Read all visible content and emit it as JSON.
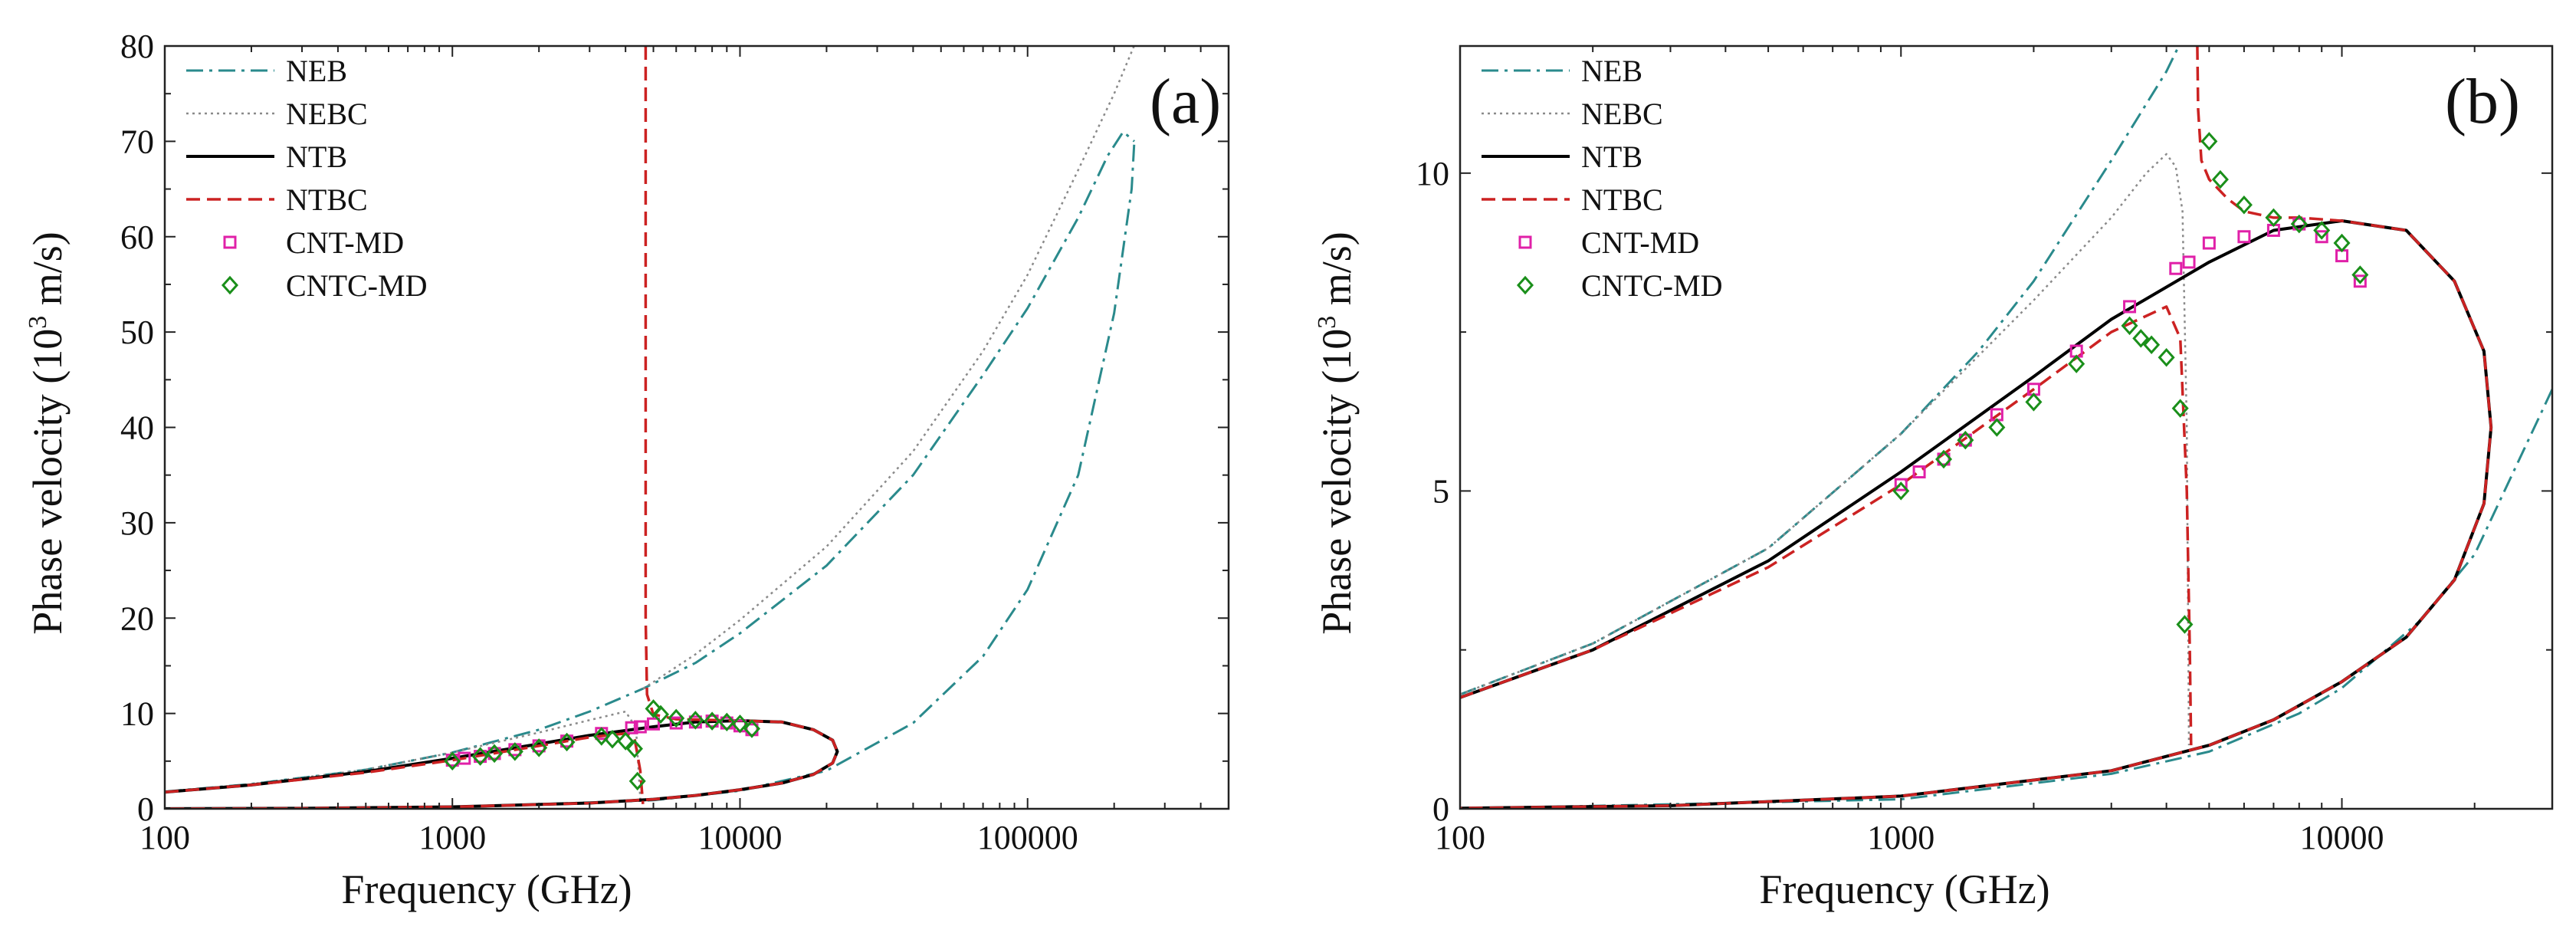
{
  "colors": {
    "NEB": "#2a8a8c",
    "NEBC": "#8a8a8a",
    "NTB": "#000000",
    "NTBC": "#cc2222",
    "CNT-MD": "#e020a8",
    "CNTC-MD": "#1a8f1a"
  },
  "chart_data": [
    {
      "type": "line",
      "panel_label": "(a)",
      "xlabel": "Frequency (GHz)",
      "ylabel": "Phase velocity (10",
      "ylabel_sup": "3",
      "ylabel_unit": " m/s)",
      "xscale": "log",
      "xlim": [
        100,
        500000
      ],
      "ylim": [
        0,
        80
      ],
      "x_ticks": [
        100,
        1000,
        10000,
        100000
      ],
      "x_tick_labels": [
        "100",
        "1000",
        "10000",
        "100000"
      ],
      "y_ticks": [
        0,
        10,
        20,
        30,
        40,
        50,
        60,
        70,
        80
      ],
      "y_tick_labels": [
        "0",
        "10",
        "20",
        "30",
        "40",
        "50",
        "60",
        "70",
        "80"
      ],
      "legend_position": "top-left",
      "series": [
        {
          "name": "NEB",
          "style": "dashdot",
          "branches": [
            {
              "x": [
                100,
                200,
                500,
                1000,
                2000,
                3000,
                4600,
                7000,
                10000,
                20000,
                40000,
                70000,
                100000,
                150000,
                190000,
                215000,
                235000
              ],
              "y": [
                1.8,
                2.6,
                4.1,
                5.9,
                8.3,
                10.2,
                12.6,
                15.3,
                18.4,
                25.5,
                35.0,
                45.5,
                52.5,
                62.0,
                68.5,
                71.0,
                70.0
              ]
            },
            {
              "x": [
                100,
                1000,
                5000,
                10000,
                20000,
                40000,
                70000,
                100000,
                150000,
                200000,
                230000,
                235000
              ],
              "y": [
                0.0,
                0.15,
                0.9,
                1.9,
                4.0,
                9.0,
                16.0,
                23.0,
                35.0,
                52.0,
                65.0,
                70.0
              ]
            }
          ]
        },
        {
          "name": "NEBC",
          "style": "dotted",
          "branches": [
            {
              "x": [
                100,
                200,
                500,
                1000,
                2000,
                3000,
                4000,
                4350,
                4500
              ],
              "y": [
                1.8,
                2.6,
                4.1,
                5.9,
                8.0,
                9.3,
                10.2,
                8.5,
                1.0
              ]
            },
            {
              "x": [
                4600,
                5000,
                7000,
                10000,
                20000,
                40000,
                70000,
                100000,
                150000,
                200000,
                250000
              ],
              "y": [
                12.6,
                13.3,
                16.2,
                19.8,
                27.5,
                37.5,
                48.0,
                56.0,
                67.0,
                75.0,
                82.0
              ]
            }
          ]
        },
        {
          "name": "NTB",
          "style": "solid",
          "branches": [
            {
              "x": [
                100,
                200,
                500,
                1000,
                2000,
                3000,
                5000,
                7000,
                10000,
                14000,
                18000,
                21000,
                21800,
                21000,
                18000,
                14000,
                10000,
                7000,
                5000,
                3000,
                1000,
                300,
                100
              ],
              "y": [
                1.75,
                2.5,
                3.9,
                5.3,
                6.8,
                7.7,
                8.6,
                9.1,
                9.25,
                9.1,
                8.3,
                7.2,
                6.0,
                4.8,
                3.6,
                2.7,
                2.0,
                1.4,
                1.0,
                0.6,
                0.2,
                0.05,
                0.01
              ]
            }
          ]
        },
        {
          "name": "NTBC",
          "style": "dashed",
          "branches": [
            {
              "x": [
                100,
                200,
                500,
                1000,
                2000,
                3000,
                4000,
                4300,
                4500,
                4600
              ],
              "y": [
                1.75,
                2.5,
                3.8,
                5.1,
                6.6,
                7.5,
                7.9,
                7.4,
                4.0,
                0.5
              ]
            },
            {
              "x": [
                4700,
                4700,
                4750,
                5000,
                6000,
                8000,
                10000,
                14000,
                18000,
                21000,
                21800,
                21000,
                18000,
                14000,
                10000,
                7000,
                5000,
                3000,
                1000,
                300,
                100
              ],
              "y": [
                80,
                20,
                12.0,
                9.9,
                9.4,
                9.3,
                9.25,
                9.1,
                8.3,
                7.2,
                6.0,
                4.8,
                3.6,
                2.7,
                2.0,
                1.4,
                1.0,
                0.6,
                0.2,
                0.05,
                0.01
              ]
            }
          ]
        }
      ],
      "markers": [
        {
          "name": "CNT-MD",
          "symbol": "square",
          "points": [
            [
              1000,
              5.1
            ],
            [
              1100,
              5.3
            ],
            [
              1250,
              5.5
            ],
            [
              1400,
              5.8
            ],
            [
              1650,
              6.2
            ],
            [
              2000,
              6.6
            ],
            [
              2500,
              7.1
            ],
            [
              3300,
              7.9
            ],
            [
              4200,
              8.5
            ],
            [
              4500,
              8.6
            ],
            [
              5000,
              8.9
            ],
            [
              6000,
              9.0
            ],
            [
              7000,
              9.1
            ],
            [
              8000,
              9.2
            ],
            [
              9000,
              9.0
            ],
            [
              10000,
              8.7
            ],
            [
              11000,
              8.3
            ]
          ]
        },
        {
          "name": "CNTC-MD",
          "symbol": "diamond",
          "points": [
            [
              1000,
              5.0
            ],
            [
              1250,
              5.5
            ],
            [
              1400,
              5.8
            ],
            [
              1650,
              6.0
            ],
            [
              2000,
              6.4
            ],
            [
              2500,
              7.0
            ],
            [
              3300,
              7.6
            ],
            [
              3600,
              7.3
            ],
            [
              4000,
              7.1
            ],
            [
              4300,
              6.3
            ],
            [
              4400,
              2.9
            ],
            [
              5000,
              10.5
            ],
            [
              5300,
              9.9
            ],
            [
              6000,
              9.5
            ],
            [
              7000,
              9.3
            ],
            [
              8000,
              9.2
            ],
            [
              9000,
              9.1
            ],
            [
              10000,
              8.9
            ],
            [
              11000,
              8.4
            ]
          ]
        }
      ]
    },
    {
      "type": "line",
      "panel_label": "(b)",
      "xlabel": "Frequency (GHz)",
      "ylabel": "Phase velocity (10",
      "ylabel_sup": "3",
      "ylabel_unit": " m/s)",
      "xscale": "log",
      "xlim": [
        100,
        30000
      ],
      "ylim": [
        0,
        12
      ],
      "x_ticks": [
        100,
        1000,
        10000
      ],
      "x_tick_labels": [
        "100",
        "1000",
        "10000"
      ],
      "y_ticks": [
        0,
        5,
        10
      ],
      "y_tick_labels": [
        "0",
        "5",
        "10"
      ],
      "legend_position": "top-left",
      "series": [
        {
          "name": "NEB",
          "style": "dashdot",
          "branches": [
            {
              "x": [
                100,
                200,
                500,
                1000,
                1500,
                2000,
                3000,
                4000,
                4700
              ],
              "y": [
                1.8,
                2.6,
                4.1,
                5.9,
                7.2,
                8.3,
                10.2,
                11.6,
                12.6
              ]
            },
            {
              "x": [
                100,
                1000,
                3000,
                5000,
                8000,
                10000,
                15000,
                20000,
                30000
              ],
              "y": [
                0.0,
                0.15,
                0.55,
                0.9,
                1.5,
                1.9,
                2.95,
                4.0,
                6.6
              ]
            }
          ]
        },
        {
          "name": "NEBC",
          "style": "dotted",
          "branches": [
            {
              "x": [
                100,
                200,
                500,
                1000,
                2000,
                3000,
                3600,
                4000,
                4200,
                4350,
                4450,
                4500
              ],
              "y": [
                1.8,
                2.6,
                4.1,
                5.9,
                8.0,
                9.3,
                10.0,
                10.3,
                10.1,
                9.4,
                6.0,
                1.0
              ]
            }
          ]
        },
        {
          "name": "NTB",
          "style": "solid",
          "branches": [
            {
              "x": [
                100,
                200,
                500,
                1000,
                2000,
                3000,
                5000,
                7000,
                10000,
                14000,
                18000,
                21000,
                21800,
                21000,
                18000,
                14000,
                10000,
                7000,
                5000,
                3000,
                1000,
                300,
                100
              ],
              "y": [
                1.75,
                2.5,
                3.9,
                5.3,
                6.8,
                7.7,
                8.6,
                9.1,
                9.25,
                9.1,
                8.3,
                7.2,
                6.0,
                4.8,
                3.6,
                2.7,
                2.0,
                1.4,
                1.0,
                0.6,
                0.2,
                0.05,
                0.01
              ]
            }
          ]
        },
        {
          "name": "NTBC",
          "style": "dashed",
          "branches": [
            {
              "x": [
                100,
                200,
                500,
                1000,
                2000,
                3000,
                4000,
                4300,
                4450,
                4520,
                4550
              ],
              "y": [
                1.75,
                2.5,
                3.8,
                5.1,
                6.6,
                7.5,
                7.9,
                7.4,
                5.0,
                2.5,
                1.0
              ]
            },
            {
              "x": [
                4700,
                4720,
                4800,
                5000,
                5500,
                6000,
                7000,
                8000,
                10000,
                14000,
                18000,
                21000,
                21800,
                21000,
                18000,
                14000,
                10000,
                7000,
                5000,
                3000,
                1000,
                300,
                100
              ],
              "y": [
                12.0,
                11.0,
                10.2,
                9.9,
                9.6,
                9.4,
                9.3,
                9.3,
                9.25,
                9.1,
                8.3,
                7.2,
                6.0,
                4.8,
                3.6,
                2.7,
                2.0,
                1.4,
                1.0,
                0.6,
                0.2,
                0.05,
                0.01
              ]
            }
          ]
        }
      ],
      "markers": [
        {
          "name": "CNT-MD",
          "symbol": "square",
          "points": [
            [
              1000,
              5.1
            ],
            [
              1100,
              5.3
            ],
            [
              1250,
              5.5
            ],
            [
              1400,
              5.8
            ],
            [
              1650,
              6.2
            ],
            [
              2000,
              6.6
            ],
            [
              2500,
              7.2
            ],
            [
              3300,
              7.9
            ],
            [
              4200,
              8.5
            ],
            [
              4500,
              8.6
            ],
            [
              5000,
              8.9
            ],
            [
              6000,
              9.0
            ],
            [
              7000,
              9.1
            ],
            [
              8000,
              9.2
            ],
            [
              9000,
              9.0
            ],
            [
              10000,
              8.7
            ],
            [
              11000,
              8.3
            ]
          ]
        },
        {
          "name": "CNTC-MD",
          "symbol": "diamond",
          "points": [
            [
              1000,
              5.0
            ],
            [
              1250,
              5.5
            ],
            [
              1400,
              5.8
            ],
            [
              1650,
              6.0
            ],
            [
              2000,
              6.4
            ],
            [
              2500,
              7.0
            ],
            [
              3300,
              7.6
            ],
            [
              3500,
              7.4
            ],
            [
              3700,
              7.3
            ],
            [
              4000,
              7.1
            ],
            [
              4300,
              6.3
            ],
            [
              4400,
              2.9
            ],
            [
              5000,
              10.5
            ],
            [
              5300,
              9.9
            ],
            [
              6000,
              9.5
            ],
            [
              7000,
              9.3
            ],
            [
              8000,
              9.2
            ],
            [
              9000,
              9.1
            ],
            [
              10000,
              8.9
            ],
            [
              11000,
              8.4
            ]
          ]
        }
      ]
    }
  ]
}
